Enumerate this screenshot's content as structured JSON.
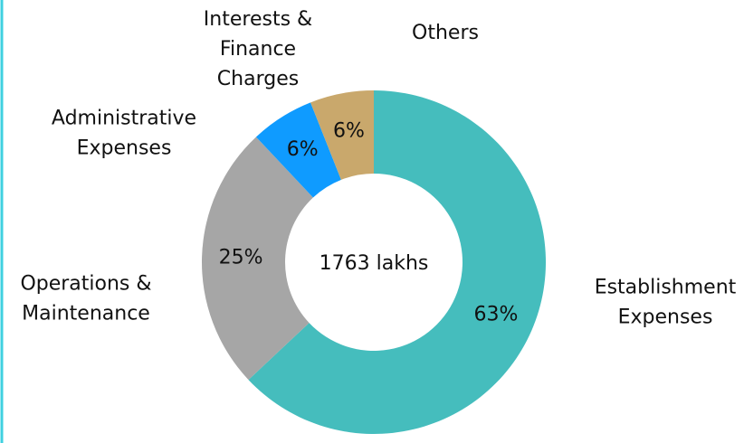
{
  "chart_data": {
    "type": "donut",
    "center_label": "1763 lakhs",
    "categories": [
      "Establishment Expenses",
      "Operations & Maintenance",
      "Administrative Expenses",
      "Interests & Finance Charges",
      "Others"
    ],
    "values": [
      63,
      25,
      6,
      6,
      0
    ],
    "value_labels": [
      "63%",
      "25%",
      "6%",
      "6%",
      null
    ],
    "colors": [
      "#45bdbd",
      "#a6a6a6",
      "#0f9bff",
      "#c9a86c",
      "#7f7f7f"
    ]
  }
}
